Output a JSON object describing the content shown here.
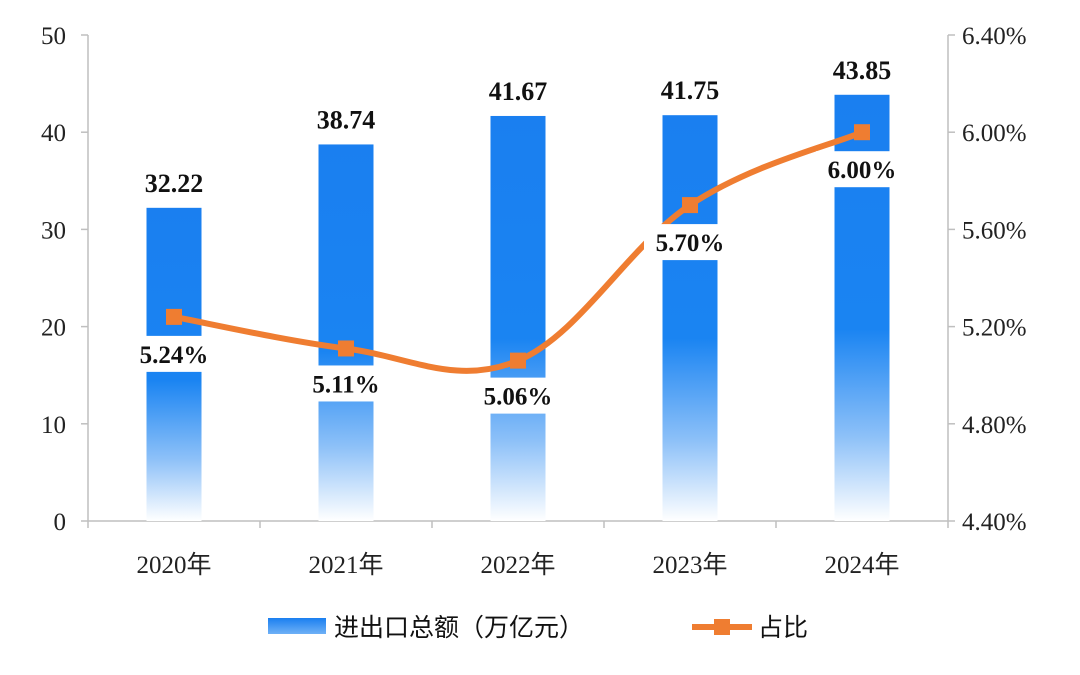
{
  "chart_data": {
    "type": "bar+line",
    "categories": [
      "2020年",
      "2021年",
      "2022年",
      "2023年",
      "2024年"
    ],
    "series": [
      {
        "name": "进出口总额（万亿元）",
        "type": "bar",
        "axis": "left",
        "values": [
          32.22,
          38.74,
          41.67,
          41.75,
          43.85
        ],
        "labels": [
          "32.22",
          "38.74",
          "41.67",
          "41.75",
          "43.85"
        ],
        "color": "#1a7ff0"
      },
      {
        "name": "占比",
        "type": "line",
        "axis": "right",
        "values": [
          5.24,
          5.11,
          5.06,
          5.7,
          6.0
        ],
        "labels": [
          "5.24%",
          "5.11%",
          "5.06%",
          "5.70%",
          "6.00%"
        ],
        "color": "#ef7d31"
      }
    ],
    "y_left": {
      "ylim": [
        0,
        50
      ],
      "ticks": [
        "0",
        "10",
        "20",
        "30",
        "40",
        "50"
      ]
    },
    "y_right": {
      "ylim": [
        4.4,
        6.4
      ],
      "ticks": [
        "4.40%",
        "4.80%",
        "5.20%",
        "5.60%",
        "6.00%",
        "6.40%"
      ]
    },
    "legend": {
      "position": "bottom"
    },
    "grid": false
  }
}
